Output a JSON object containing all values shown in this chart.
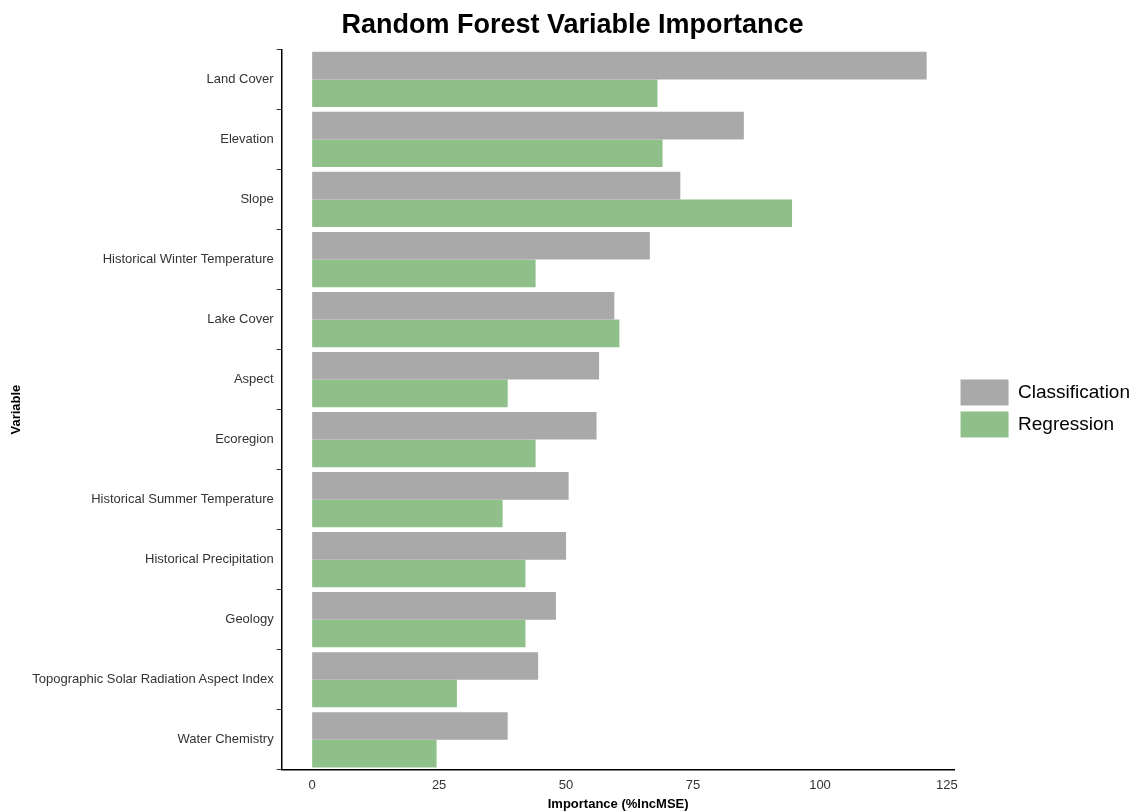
{
  "chart_data": {
    "type": "bar",
    "orientation": "horizontal",
    "title": "Random Forest Variable Importance",
    "xlabel": "Importance (%IncMSE)",
    "ylabel": "Variable",
    "categories": [
      "Land Cover",
      "Elevation",
      "Slope",
      "Historical Winter Temperature",
      "Lake Cover",
      "Aspect",
      "Ecoregion",
      "Historical Summer Temperature",
      "Historical Precipitation",
      "Geology",
      "Topographic Solar Radiation Aspect Index",
      "Water Chemistry"
    ],
    "series": [
      {
        "name": "Classification",
        "color": "#a9a9a9",
        "values": [
          121,
          85,
          72.5,
          66.5,
          59.5,
          56.5,
          56,
          50.5,
          50,
          48,
          44.5,
          38.5
        ]
      },
      {
        "name": "Regression",
        "color": "#8fc08a",
        "values": [
          68,
          69,
          94.5,
          44,
          60.5,
          38.5,
          44,
          37.5,
          42,
          42,
          28.5,
          24.5
        ]
      }
    ],
    "xlim": [
      -6,
      126.5
    ],
    "xticks": [
      0,
      25,
      50,
      75,
      100,
      125
    ],
    "grid": false,
    "legend": "right"
  }
}
